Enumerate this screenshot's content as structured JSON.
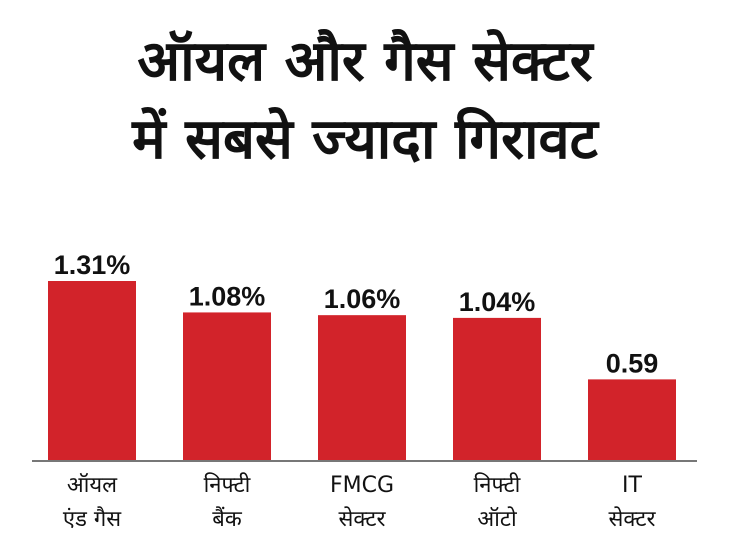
{
  "chart_data": {
    "type": "bar",
    "title": [
      "ऑयल और गैस सेक्टर",
      "में सबसे ज्यादा गिरावट"
    ],
    "categories": [
      [
        "ऑयल",
        "एंड गैस"
      ],
      [
        "निफ्टी",
        "बैंक"
      ],
      [
        "FMCG",
        "सेक्टर"
      ],
      [
        "निफ्टी",
        "ऑटो"
      ],
      [
        "IT",
        "सेक्टर"
      ]
    ],
    "values": [
      1.31,
      1.08,
      1.06,
      1.04,
      0.59
    ],
    "value_labels": [
      "1.31%",
      "1.08%",
      "1.06%",
      "1.04%",
      "0.59"
    ],
    "xlabel": "",
    "ylabel": "",
    "ylim": [
      0,
      1.31
    ],
    "grid": false,
    "bar_color": "#d2232a",
    "axis_color": "#777777"
  }
}
